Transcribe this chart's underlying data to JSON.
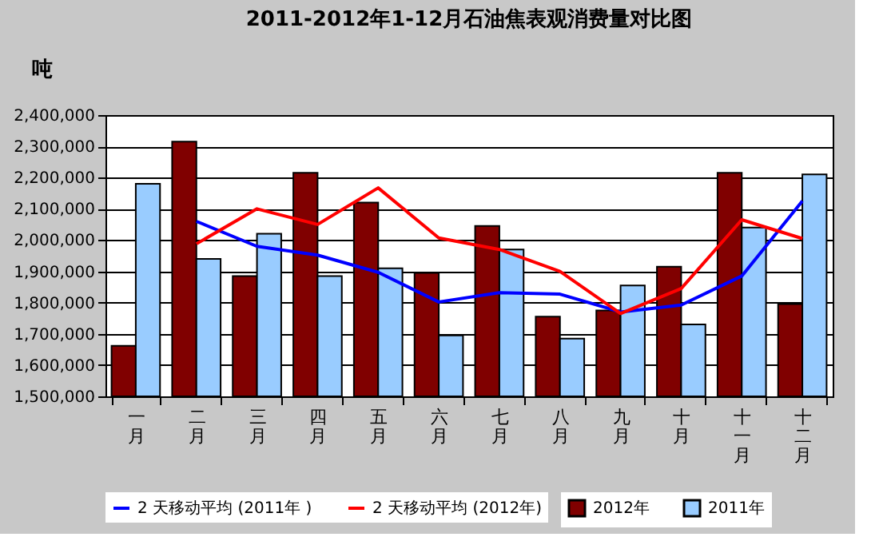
{
  "chart_data": {
    "type": "bar",
    "title": "2011-2012年1-12月石油焦表观消费量对比图",
    "ylabel": "吨",
    "categories": [
      "一月",
      "二月",
      "三月",
      "四月",
      "五月",
      "六月",
      "七月",
      "八月",
      "九月",
      "十月",
      "十一月",
      "十二月"
    ],
    "series": [
      {
        "name": "2012年",
        "color": "#800000",
        "values": [
          1662000,
          2315000,
          1885000,
          2215000,
          2120000,
          1895000,
          2045000,
          1755000,
          1775000,
          1915000,
          2215000,
          1795000
        ]
      },
      {
        "name": "2011年",
        "color": "#99ccff",
        "values": [
          2180000,
          1940000,
          2020000,
          1885000,
          1910000,
          1695000,
          1970000,
          1685000,
          1855000,
          1730000,
          2040000,
          2210000
        ]
      },
      {
        "name": "2 天移动平均 (2011年 )",
        "type": "line",
        "color": "#0000ff",
        "values": [
          null,
          2060000,
          1980000,
          1952000,
          1897000,
          1802000,
          1832000,
          1827000,
          1770000,
          1792000,
          1885000,
          2125000
        ]
      },
      {
        "name": "2 天移动平均 (2012年)",
        "type": "line",
        "color": "#ff0000",
        "values": [
          null,
          1988000,
          2100000,
          2050000,
          2167000,
          2007000,
          1970000,
          1900000,
          1765000,
          1845000,
          2065000,
          2005000
        ]
      }
    ],
    "ylim": [
      1500000,
      2400000
    ],
    "yticks": [
      {
        "value": 1500000,
        "label": "1,500,000"
      },
      {
        "value": 1600000,
        "label": "1,600,000"
      },
      {
        "value": 1700000,
        "label": "1,700,000"
      },
      {
        "value": 1800000,
        "label": "1,800,000"
      },
      {
        "value": 1900000,
        "label": "1,900,000"
      },
      {
        "value": 2000000,
        "label": "2,000,000"
      },
      {
        "value": 2100000,
        "label": "2,100,000"
      },
      {
        "value": 2200000,
        "label": "2,200,000"
      },
      {
        "value": 2300000,
        "label": "2,300,000"
      },
      {
        "value": 2400000,
        "label": "2,400,000"
      }
    ],
    "grid": "y",
    "legend": "bottom"
  }
}
